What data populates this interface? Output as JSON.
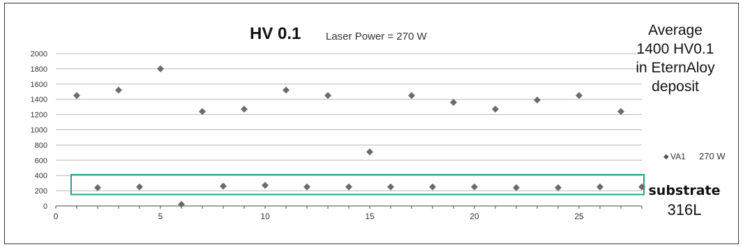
{
  "chart_data": {
    "type": "scatter",
    "title": "HV 0.1",
    "subtitle": "Laser Power = 270 W",
    "xlabel": "",
    "ylabel": "",
    "xlim": [
      0,
      28
    ],
    "ylim": [
      0,
      2000
    ],
    "xticks": [
      "0",
      "5",
      "10",
      "15",
      "20",
      "25"
    ],
    "yticks": [
      "0",
      "200",
      "400",
      "600",
      "800",
      "1000",
      "1200",
      "1400",
      "1600",
      "1800",
      "2000"
    ],
    "grid": true,
    "legend_position": "right",
    "series": [
      {
        "name": "VA1",
        "x": [
          1,
          2,
          3,
          4,
          5,
          6,
          7,
          8,
          9,
          10,
          11,
          12,
          13,
          14,
          15,
          16,
          17,
          18,
          19,
          20,
          21,
          22,
          23,
          24,
          25,
          26,
          27,
          28
        ],
        "y": [
          1450,
          240,
          1520,
          250,
          1800,
          20,
          1240,
          260,
          1270,
          270,
          1520,
          250,
          1450,
          250,
          710,
          250,
          1450,
          250,
          1360,
          250,
          1270,
          240,
          1390,
          240,
          1450,
          250,
          1240,
          250
        ],
        "color": "#6b6b6b",
        "marker": "diamond"
      }
    ],
    "legend_entries": [
      {
        "symbol": "◆",
        "label": "VA1",
        "extra": "270 W"
      }
    ],
    "highlight_box": {
      "x_range": [
        1,
        28
      ],
      "y_range": [
        150,
        410
      ],
      "color": "#2a9d8f"
    },
    "annotations": {
      "average": [
        "Average",
        "1400 HV0.1",
        "in EternAloy",
        "deposit"
      ],
      "substrate": [
        "substrate",
        "316L"
      ]
    }
  }
}
